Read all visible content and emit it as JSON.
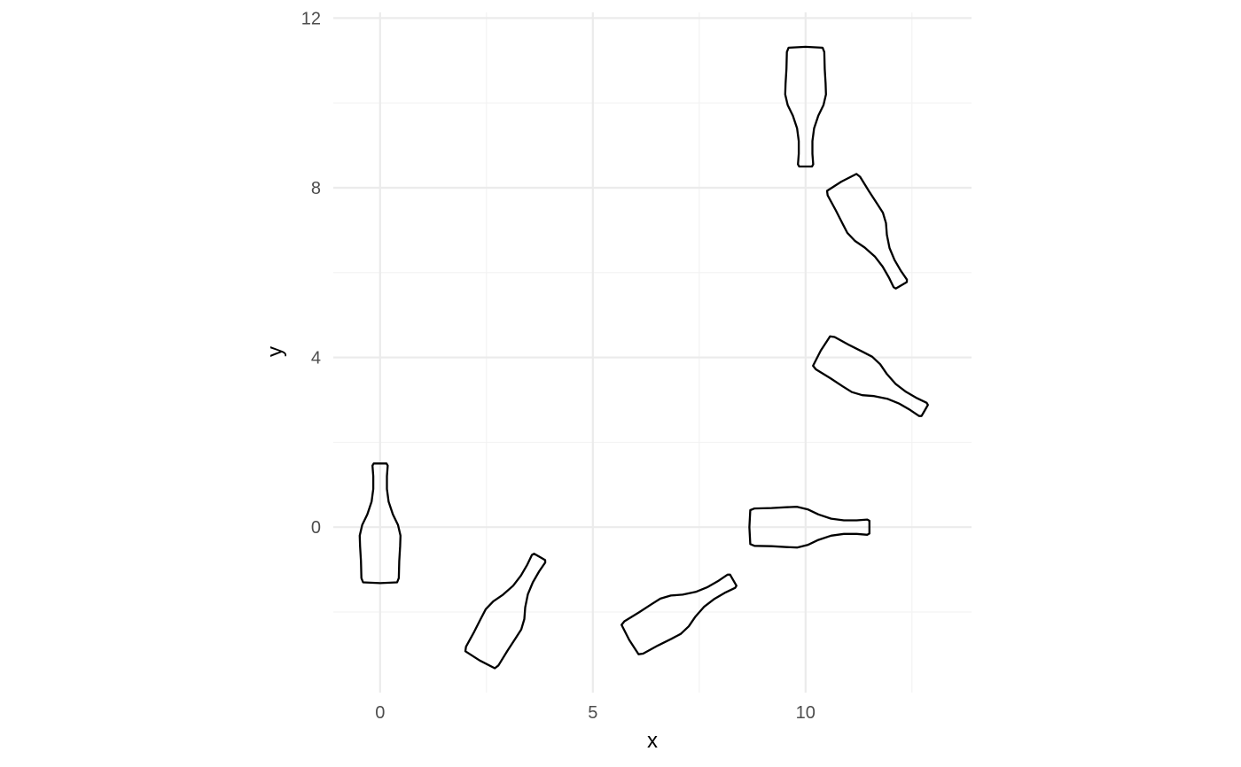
{
  "chart_data": {
    "type": "scatter",
    "title": "",
    "xlabel": "x",
    "ylabel": "y",
    "xlim": [
      -1.1,
      13.9
    ],
    "ylim": [
      -3.9,
      12.3
    ],
    "x_major_ticks": [
      0,
      5,
      10
    ],
    "x_minor_ticks": [
      2.5,
      7.5,
      12.5
    ],
    "y_major_ticks": [
      0,
      4,
      8,
      12
    ],
    "y_minor_ticks": [
      -2,
      2,
      6,
      10
    ],
    "x_tick_labels": [
      "0",
      "5",
      "10"
    ],
    "y_tick_labels": [
      "0",
      "4",
      "8",
      "12"
    ],
    "grid": true,
    "marker": "bottle outline",
    "points": [
      {
        "x": 0,
        "y": 0,
        "angle": 0
      },
      {
        "x": 3,
        "y": -2,
        "angle": 30
      },
      {
        "x": 7,
        "y": -2,
        "angle": 60
      },
      {
        "x": 10,
        "y": 0,
        "angle": 90
      },
      {
        "x": 11.5,
        "y": 3.5,
        "angle": 120
      },
      {
        "x": 11.5,
        "y": 7,
        "angle": 150
      },
      {
        "x": 10,
        "y": 10,
        "angle": 180
      }
    ]
  }
}
